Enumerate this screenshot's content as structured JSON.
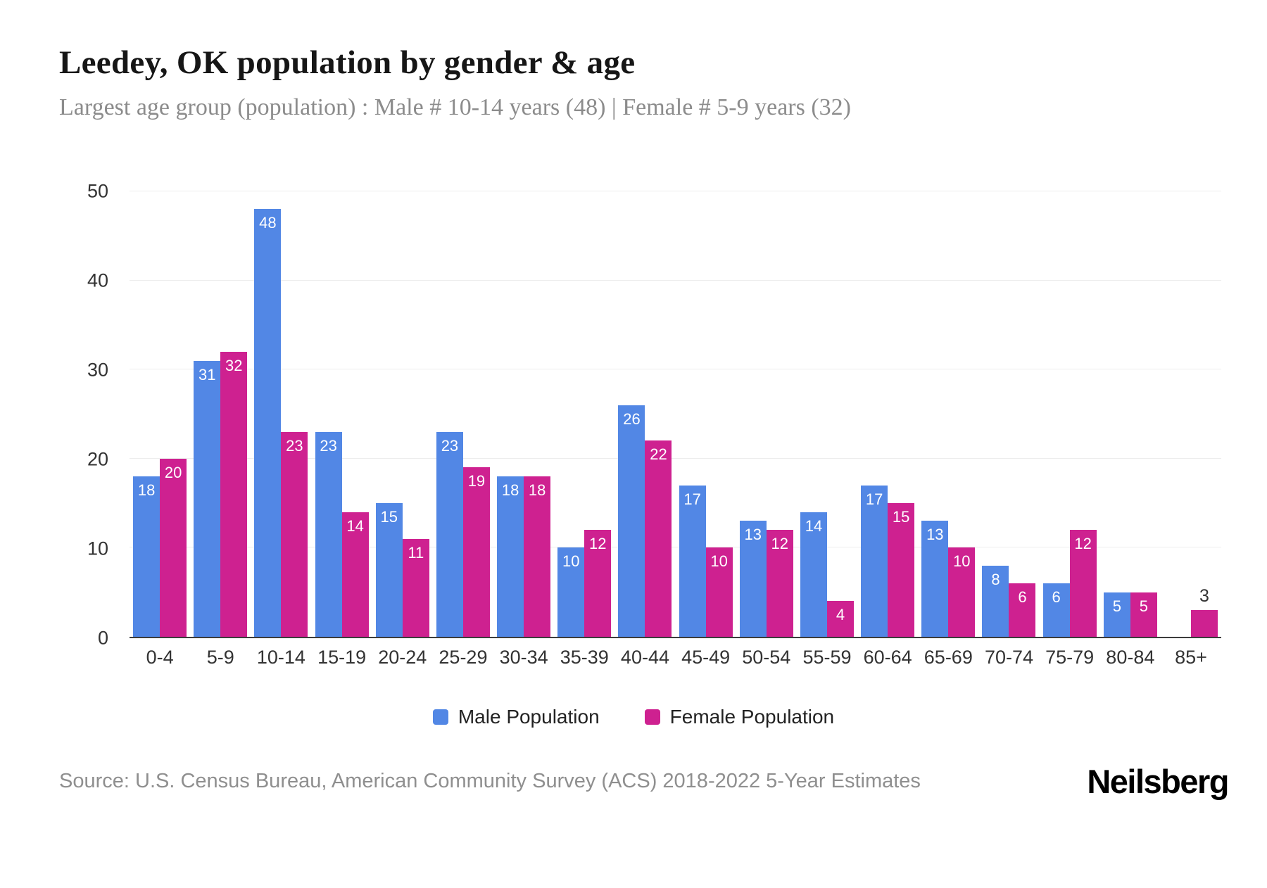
{
  "header": {
    "title": "Leedey, OK population by gender & age",
    "subtitle": "Largest age group (population) : Male # 10-14 years (48) | Female # 5-9 years (32)"
  },
  "chart_data": {
    "type": "bar",
    "categories": [
      "0-4",
      "5-9",
      "10-14",
      "15-19",
      "20-24",
      "25-29",
      "30-34",
      "35-39",
      "40-44",
      "45-49",
      "50-54",
      "55-59",
      "60-64",
      "65-69",
      "70-74",
      "75-79",
      "80-84",
      "85+"
    ],
    "series": [
      {
        "name": "Male Population",
        "color": "#5287e5",
        "values": [
          18,
          31,
          48,
          23,
          15,
          23,
          18,
          10,
          26,
          17,
          13,
          14,
          17,
          13,
          8,
          6,
          5,
          0
        ]
      },
      {
        "name": "Female Population",
        "color": "#ce2190",
        "values": [
          20,
          32,
          23,
          14,
          11,
          19,
          18,
          12,
          22,
          10,
          12,
          4,
          15,
          10,
          6,
          12,
          5,
          3
        ]
      }
    ],
    "title": "Leedey, OK population by gender & age",
    "xlabel": "",
    "ylabel": "",
    "ylim": [
      0,
      50
    ],
    "yticks": [
      0,
      10,
      20,
      30,
      40,
      50
    ],
    "grid": "horizontal",
    "legend_position": "bottom",
    "bar_label_color_inside": "#ffffff",
    "bar_label_color_outside": "#333333"
  },
  "footer": {
    "source": "Source: U.S. Census Bureau, American Community Survey (ACS) 2018-2022 5-Year Estimates",
    "brand": "Neilsberg"
  }
}
